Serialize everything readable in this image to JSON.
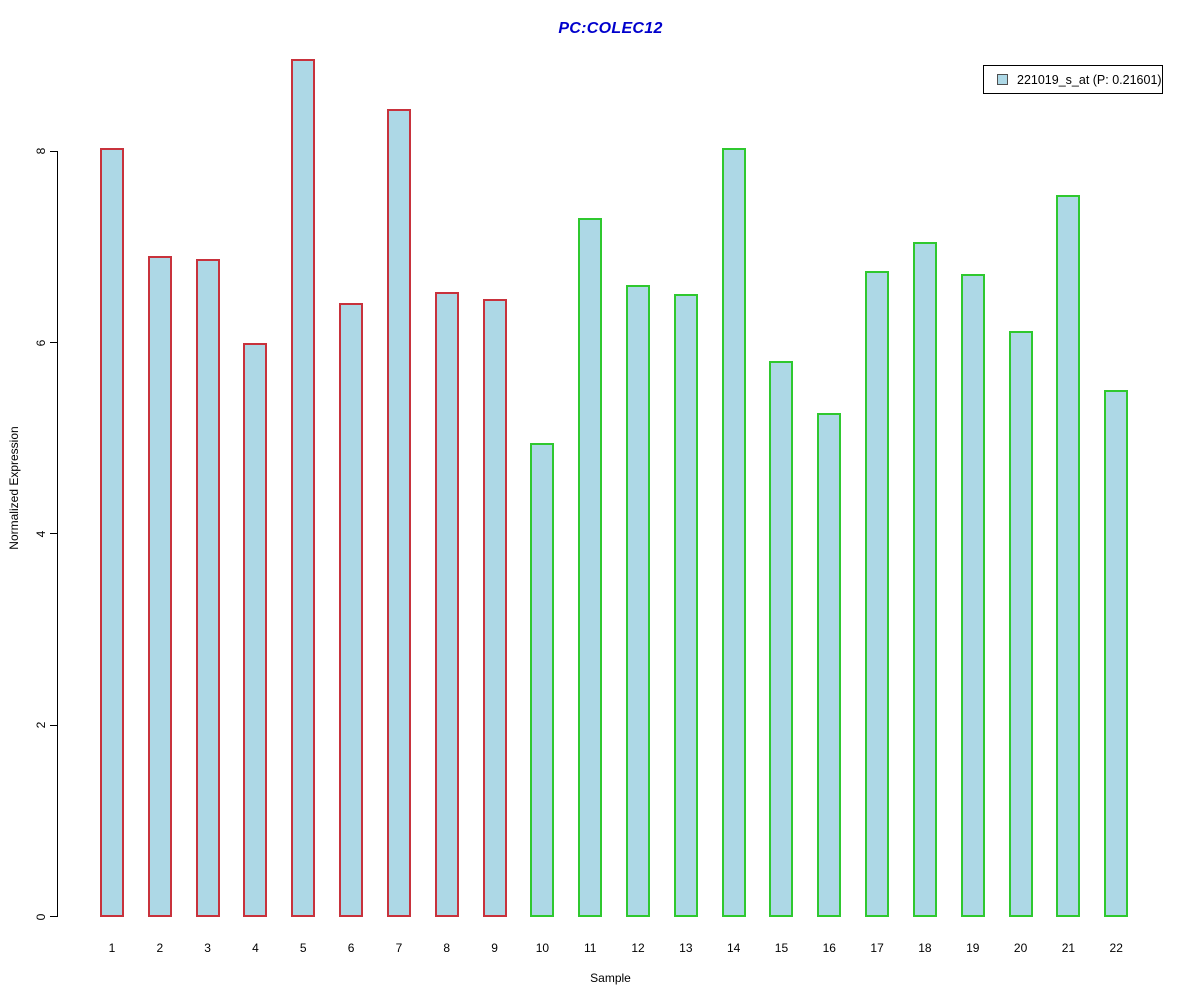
{
  "chart_data": {
    "type": "bar",
    "title": "PC:COLEC12",
    "title_color": "#0000CC",
    "xlabel": "Sample",
    "ylabel": "Normalized Expression",
    "categories": [
      "1",
      "2",
      "3",
      "4",
      "5",
      "6",
      "7",
      "8",
      "9",
      "10",
      "11",
      "12",
      "13",
      "14",
      "15",
      "16",
      "17",
      "18",
      "19",
      "20",
      "21",
      "22"
    ],
    "values": [
      8.03,
      6.9,
      6.87,
      5.99,
      8.96,
      6.41,
      8.44,
      6.53,
      6.46,
      4.95,
      7.3,
      6.6,
      6.51,
      8.03,
      5.81,
      5.26,
      6.75,
      7.05,
      6.72,
      6.12,
      7.54,
      5.5
    ],
    "bar_fill": "#ADD8E6",
    "bar_border_colors": [
      "#C8323C",
      "#C8323C",
      "#C8323C",
      "#C8323C",
      "#C8323C",
      "#C8323C",
      "#C8323C",
      "#C8323C",
      "#C8323C",
      "#2FC82F",
      "#2FC82F",
      "#2FC82F",
      "#2FC82F",
      "#2FC82F",
      "#2FC82F",
      "#2FC82F",
      "#2FC82F",
      "#2FC82F",
      "#2FC82F",
      "#2FC82F",
      "#2FC82F",
      "#2FC82F"
    ],
    "yticks": [
      0,
      2,
      4,
      6,
      8
    ],
    "ylim": [
      0,
      8.96
    ],
    "grid": false,
    "legend": {
      "position": "top-right",
      "entries": [
        {
          "label": "221019_s_at (P: 0.21601)",
          "swatch_fill": "#ADD8E6",
          "swatch_border": "#4F4F4F"
        }
      ]
    }
  }
}
